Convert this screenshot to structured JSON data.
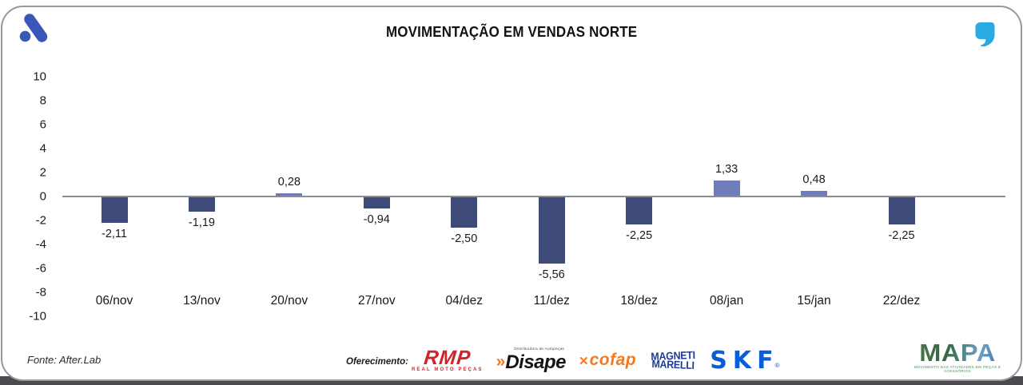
{
  "header": {
    "logo": "afterlab-a-mark",
    "logo_color": "#3a57b8",
    "quote_icon": "quote-mark",
    "quote_color": "#29abe2"
  },
  "chart_data": {
    "type": "bar",
    "title": "MOVIMENTAÇÃO EM VENDAS NORTE",
    "categories": [
      "06/nov",
      "13/nov",
      "20/nov",
      "27/nov",
      "04/dez",
      "11/dez",
      "18/dez",
      "08/jan",
      "15/jan",
      "22/dez"
    ],
    "values": [
      -2.11,
      -1.19,
      0.28,
      -0.94,
      -2.5,
      -5.56,
      -2.25,
      1.33,
      0.48,
      -2.25
    ],
    "labels": [
      "-2,11",
      "-1,19",
      "0,28",
      "-0,94",
      "-2,50",
      "-5,56",
      "-2,25",
      "1,33",
      "0,48",
      "-2,25"
    ],
    "ylim": [
      -10,
      10
    ],
    "yticks": [
      10,
      8,
      6,
      4,
      2,
      0,
      -2,
      -4,
      -6,
      -8,
      -10
    ],
    "grid": false,
    "legend": null,
    "bar_color_positive": "#707cba",
    "bar_color_negative": "#3e4a78",
    "zero_line_color": "#8c8c90"
  },
  "footer": {
    "source": "Fonte: After.Lab",
    "sponsor_label": "Oferecimento:",
    "sponsors": [
      {
        "name": "RMP",
        "subtext": "REAL MOTO PEÇAS",
        "color": "#d2232a"
      },
      {
        "chevron": "»",
        "name": "Disape",
        "subtext": "Distribuidora de Autopeças",
        "color": "#141414",
        "accent": "#f47920"
      },
      {
        "icon": "✕",
        "name": "cofap",
        "color": "#f47a20"
      },
      {
        "line1": "MAGNETI",
        "line2": "MARELLI",
        "name": "MAGNETI MARELLI",
        "color": "#1f3c90"
      },
      {
        "name": "SKF",
        "registered": "®",
        "color": "#0a5cd7"
      },
      {
        "name": "MAPA",
        "subtext": "MOVIMENTO DAS ATIVIDADES EM PEÇAS E ACESSÓRIOS",
        "colors": [
          "#35663d",
          "#3c6ea5"
        ]
      }
    ]
  }
}
